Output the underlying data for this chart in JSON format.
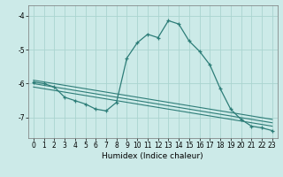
{
  "title": "",
  "xlabel": "Humidex (Indice chaleur)",
  "bg_color": "#cceae8",
  "grid_color": "#aad4d0",
  "line_color": "#2d7d78",
  "xlim": [
    -0.5,
    23.5
  ],
  "ylim": [
    -7.6,
    -3.7
  ],
  "yticks": [
    -7,
    -6,
    -5,
    -4
  ],
  "xticks": [
    0,
    1,
    2,
    3,
    4,
    5,
    6,
    7,
    8,
    9,
    10,
    11,
    12,
    13,
    14,
    15,
    16,
    17,
    18,
    19,
    20,
    21,
    22,
    23
  ],
  "line1_x": [
    0,
    23
  ],
  "line1_y": [
    -5.9,
    -7.05
  ],
  "line2_x": [
    0,
    23
  ],
  "line2_y": [
    -6.0,
    -7.15
  ],
  "line3_x": [
    0,
    23
  ],
  "line3_y": [
    -6.1,
    -7.25
  ],
  "main_x": [
    0,
    1,
    2,
    3,
    4,
    5,
    6,
    7,
    8,
    9,
    10,
    11,
    12,
    13,
    14,
    15,
    16,
    17,
    18,
    19,
    20,
    21,
    22,
    23
  ],
  "main_y": [
    -5.95,
    -6.0,
    -6.1,
    -6.4,
    -6.5,
    -6.6,
    -6.75,
    -6.8,
    -6.55,
    -5.25,
    -4.8,
    -4.55,
    -4.65,
    -4.15,
    -4.25,
    -4.75,
    -5.05,
    -5.45,
    -6.15,
    -6.75,
    -7.05,
    -7.25,
    -7.3,
    -7.38
  ]
}
